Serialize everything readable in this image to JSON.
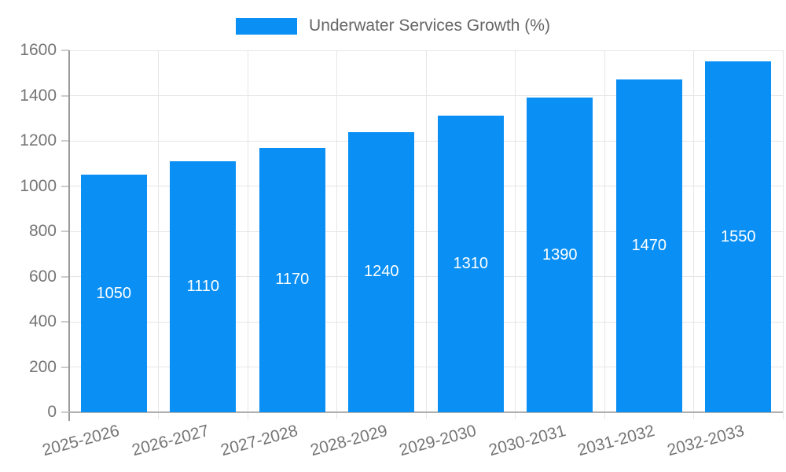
{
  "legend": {
    "label": "Underwater Services Growth (%)"
  },
  "colors": {
    "bar": "#0a90f5",
    "grid": "#e6e6e6",
    "axis": "#9a9a9a",
    "baseline": "#b0b0b0",
    "tickline": "#cccccc",
    "tick_text": "#757575",
    "legend_text": "#666666",
    "bar_label": "#ffffff",
    "background": "#ffffff"
  },
  "chart_data": {
    "type": "bar",
    "title": "",
    "xlabel": "",
    "ylabel": "",
    "categories": [
      "2025-2026",
      "2026-2027",
      "2027-2028",
      "2028-2029",
      "2029-2030",
      "2030-2031",
      "2031-2032",
      "2032-2033"
    ],
    "series": [
      {
        "name": "Underwater Services Growth (%)",
        "values": [
          1050,
          1110,
          1170,
          1240,
          1310,
          1390,
          1470,
          1550
        ]
      }
    ],
    "ylim": [
      0,
      1600
    ],
    "yticks": [
      0,
      200,
      400,
      600,
      800,
      1000,
      1200,
      1400,
      1600
    ],
    "grid": true,
    "legend_position": "top",
    "value_labels": "inside-center",
    "x_label_rotation_deg": -15
  }
}
